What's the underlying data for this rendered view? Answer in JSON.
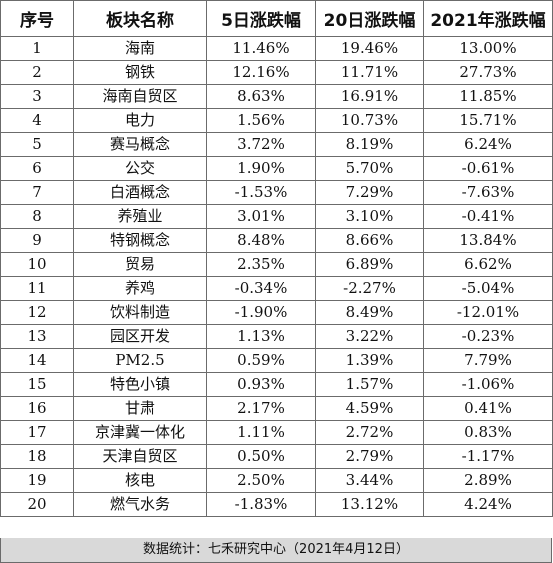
{
  "table": {
    "headers": [
      "序号",
      "板块名称",
      "5日涨跌幅",
      "20日涨跌幅",
      "2021年涨跌幅"
    ],
    "rows": [
      [
        "1",
        "海南",
        "11.46%",
        "19.46%",
        "13.00%"
      ],
      [
        "2",
        "钢铁",
        "12.16%",
        "11.71%",
        "27.73%"
      ],
      [
        "3",
        "海南自贸区",
        "8.63%",
        "16.91%",
        "11.85%"
      ],
      [
        "4",
        "电力",
        "1.56%",
        "10.73%",
        "15.71%"
      ],
      [
        "5",
        "赛马概念",
        "3.72%",
        "8.19%",
        "6.24%"
      ],
      [
        "6",
        "公交",
        "1.90%",
        "5.70%",
        "-0.61%"
      ],
      [
        "7",
        "白酒概念",
        "-1.53%",
        "7.29%",
        "-7.63%"
      ],
      [
        "8",
        "养殖业",
        "3.01%",
        "3.10%",
        "-0.41%"
      ],
      [
        "9",
        "特钢概念",
        "8.48%",
        "8.66%",
        "13.84%"
      ],
      [
        "10",
        "贸易",
        "2.35%",
        "6.89%",
        "6.62%"
      ],
      [
        "11",
        "养鸡",
        "-0.34%",
        "-2.27%",
        "-5.04%"
      ],
      [
        "12",
        "饮料制造",
        "-1.90%",
        "8.49%",
        "-12.01%"
      ],
      [
        "13",
        "园区开发",
        "1.13%",
        "3.22%",
        "-0.23%"
      ],
      [
        "14",
        "PM2.5",
        "0.59%",
        "1.39%",
        "7.79%"
      ],
      [
        "15",
        "特色小镇",
        "0.93%",
        "1.57%",
        "-1.06%"
      ],
      [
        "16",
        "甘肃",
        "2.17%",
        "4.59%",
        "0.41%"
      ],
      [
        "17",
        "京津冀一体化",
        "1.11%",
        "2.72%",
        "0.83%"
      ],
      [
        "18",
        "天津自贸区",
        "0.50%",
        "2.79%",
        "-1.17%"
      ],
      [
        "19",
        "核电",
        "2.50%",
        "3.44%",
        "2.89%"
      ],
      [
        "20",
        "燃气水务",
        "-1.83%",
        "13.12%",
        "4.24%"
      ]
    ]
  },
  "footer": {
    "text": "数据统计：七禾研究中心（2021年4月12日）"
  },
  "colors": {
    "border": "#6b6b6b",
    "footer_bg": "#d9d9d9",
    "text": "#111111"
  }
}
